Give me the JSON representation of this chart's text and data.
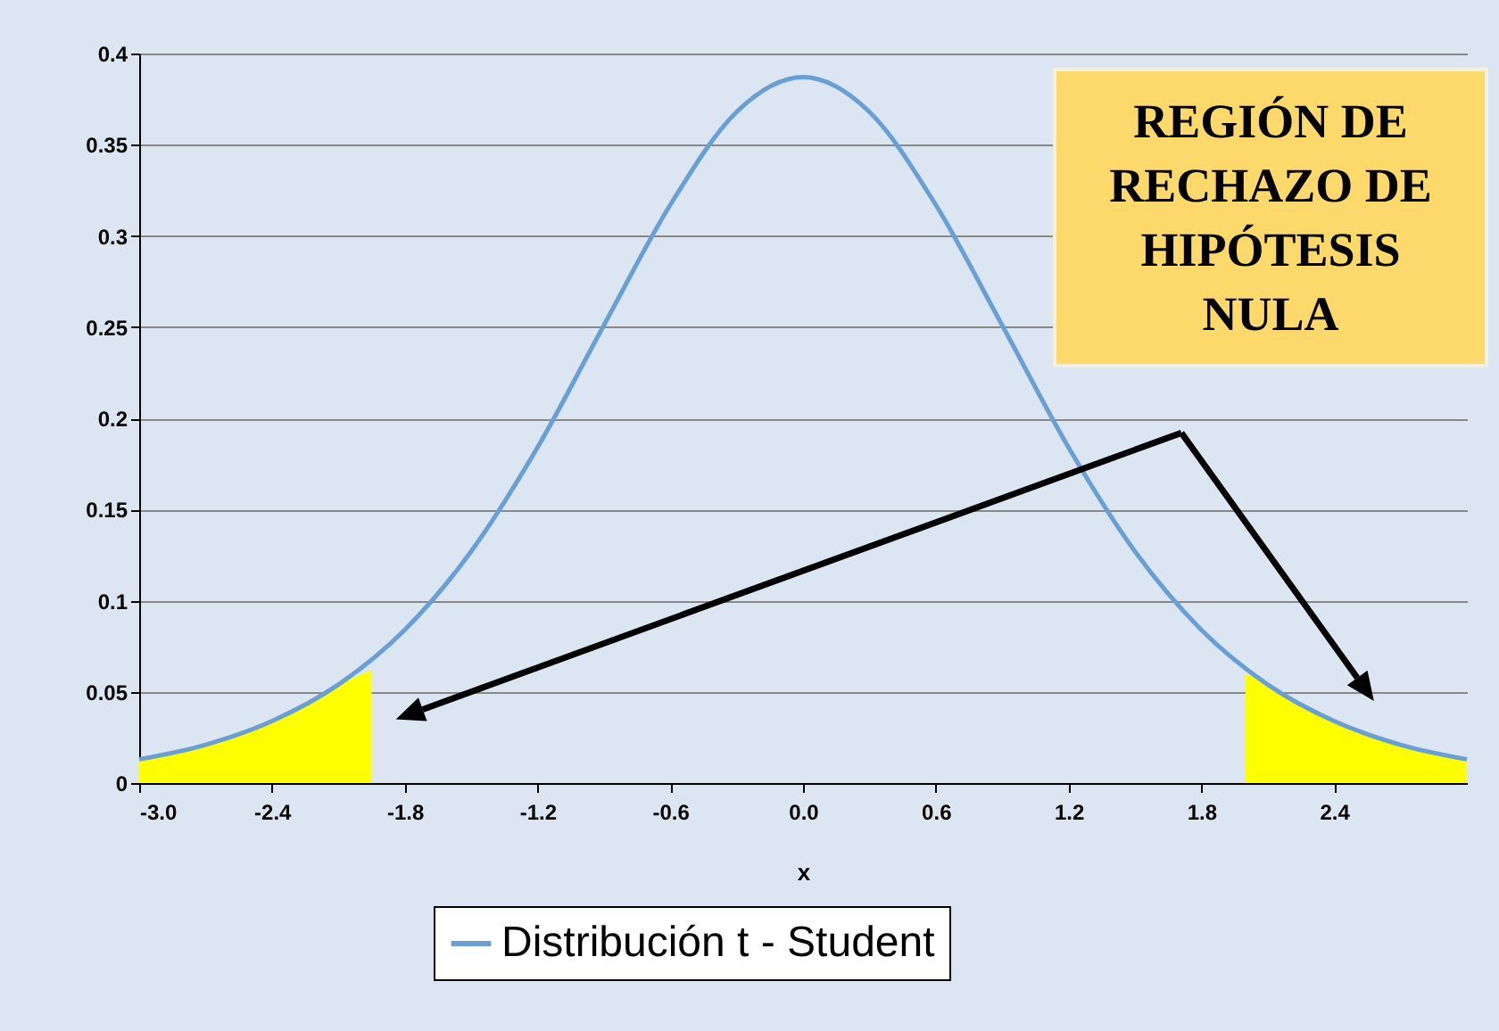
{
  "chart_data": {
    "type": "line",
    "xlabel": "x",
    "xlim": [
      -3,
      3
    ],
    "xticks": [
      {
        "value": -3,
        "label": "-3.0"
      },
      -2.4,
      -1.8,
      -1.2,
      -0.6,
      {
        "value": 0,
        "label": "0.0"
      },
      0.6,
      1.2,
      1.8,
      2.4
    ],
    "ylim": [
      0,
      0.4
    ],
    "yticks": [
      0,
      0.05,
      0.1,
      0.15,
      0.2,
      0.25,
      0.3,
      0.35,
      0.4
    ],
    "grid": "y",
    "legend": "bottom",
    "annotations": [
      "REGIÓN DE RECHAZO DE HIPÓTESIS NULA"
    ],
    "series": [
      {
        "type": "area",
        "color": "#ffff00",
        "x": [
          -3,
          -2.7,
          -2.4,
          -2.1,
          -1.95
        ],
        "values": [
          0.013,
          0.021,
          0.034,
          0.054,
          0.062
        ]
      },
      {
        "type": "area",
        "color": "#ffff00",
        "x": [
          2.0,
          2.1,
          2.4,
          2.7,
          3.0
        ],
        "values": [
          0.06,
          0.054,
          0.034,
          0.021,
          0.013
        ]
      },
      {
        "name": "Distribución t - Student",
        "color": "#6a9fd4",
        "x": [
          -3,
          -2.7,
          -2.4,
          -2.1,
          -1.8,
          -1.5,
          -1.2,
          -0.9,
          -0.6,
          -0.3,
          0,
          0.3,
          0.6,
          0.9,
          1.2,
          1.5,
          1.8,
          2.1,
          2.4,
          2.7,
          3.0
        ],
        "values": [
          0.013,
          0.021,
          0.034,
          0.054,
          0.084,
          0.127,
          0.184,
          0.251,
          0.317,
          0.368,
          0.387,
          0.368,
          0.317,
          0.251,
          0.184,
          0.127,
          0.084,
          0.054,
          0.034,
          0.021,
          0.013
        ]
      }
    ]
  }
}
